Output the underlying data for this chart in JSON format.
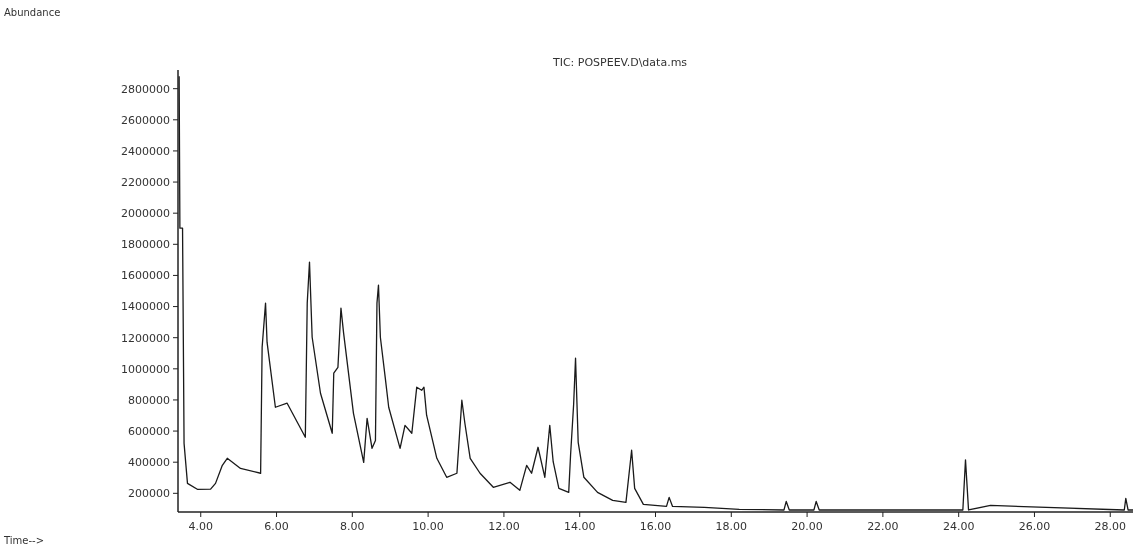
{
  "chart_data": {
    "type": "line",
    "title": "TIC: POSPEEV.D\\data.ms",
    "annotations": [
      "Abundance",
      "Time-->"
    ],
    "xlim": [
      3.4,
      28.6
    ],
    "ylim": [
      80000,
      2920000
    ],
    "xticks": [
      {
        "value": 4,
        "label": "4.00"
      },
      {
        "value": 6,
        "label": "6.00"
      },
      {
        "value": 8,
        "label": "8.00"
      },
      {
        "value": 10,
        "label": "10.00"
      },
      {
        "value": 12,
        "label": "12.00"
      },
      {
        "value": 14,
        "label": "14.00"
      },
      {
        "value": 16,
        "label": "16.00"
      },
      {
        "value": 18,
        "label": "18.00"
      },
      {
        "value": 20,
        "label": "20.00"
      },
      {
        "value": 22,
        "label": "22.00"
      },
      {
        "value": 24,
        "label": "24.00"
      },
      {
        "value": 26,
        "label": "26.00"
      },
      {
        "value": 28,
        "label": "28.00"
      }
    ],
    "yticks": [
      200000,
      400000,
      600000,
      800000,
      1000000,
      1200000,
      1400000,
      1600000,
      1800000,
      2000000,
      2200000,
      2400000,
      2600000,
      2800000
    ],
    "grid": false,
    "marker": "none",
    "line_style": "solid",
    "series": [
      {
        "color": "#1a1a1a",
        "x": [
          3.43,
          3.45,
          3.52,
          3.56,
          3.65,
          3.91,
          4.26,
          4.39,
          4.57,
          4.7,
          5.05,
          5.58,
          5.62,
          5.71,
          5.75,
          5.97,
          6.28,
          6.76,
          6.81,
          6.87,
          6.94,
          7.16,
          7.47,
          7.51,
          7.62,
          7.7,
          7.77,
          8.03,
          8.3,
          8.39,
          8.52,
          8.61,
          8.65,
          8.69,
          8.74,
          8.87,
          8.96,
          9.26,
          9.39,
          9.57,
          9.7,
          9.83,
          9.89,
          9.96,
          10.23,
          10.49,
          10.76,
          10.89,
          10.97,
          11.11,
          11.37,
          11.72,
          12.16,
          12.42,
          12.6,
          12.73,
          12.9,
          13.08,
          13.21,
          13.3,
          13.45,
          13.71,
          13.76,
          13.84,
          13.89,
          13.96,
          14.11,
          14.47,
          14.87,
          15.22,
          15.37,
          15.45,
          15.68,
          16.29,
          16.36,
          16.45,
          17.29,
          18.21,
          19.39,
          19.45,
          19.53,
          20.18,
          20.24,
          20.32,
          24.11,
          24.18,
          24.26,
          24.84,
          28.37,
          28.41,
          28.47,
          28.6
        ],
        "values": [
          2880000,
          1904000,
          1904000,
          521000,
          264000,
          226000,
          227000,
          264000,
          380000,
          425000,
          360000,
          329000,
          1139000,
          1422000,
          1171000,
          753000,
          779000,
          560000,
          1422000,
          1686000,
          1203000,
          843000,
          586000,
          972000,
          1010000,
          1390000,
          1229000,
          714000,
          399000,
          682000,
          489000,
          540000,
          1422000,
          1538000,
          1203000,
          940000,
          753000,
          489000,
          637000,
          586000,
          882000,
          862000,
          882000,
          702000,
          425000,
          303000,
          329000,
          798000,
          650000,
          425000,
          329000,
          239000,
          271000,
          219000,
          380000,
          329000,
          496000,
          303000,
          637000,
          403000,
          232000,
          206000,
          451000,
          772000,
          1068000,
          528000,
          303000,
          206000,
          155000,
          142000,
          477000,
          232000,
          129000,
          116000,
          174000,
          116000,
          110000,
          97000,
          93000,
          148000,
          93000,
          93000,
          148000,
          93000,
          93000,
          415000,
          93000,
          122000,
          93000,
          168000,
          93000,
          93000
        ]
      }
    ]
  }
}
